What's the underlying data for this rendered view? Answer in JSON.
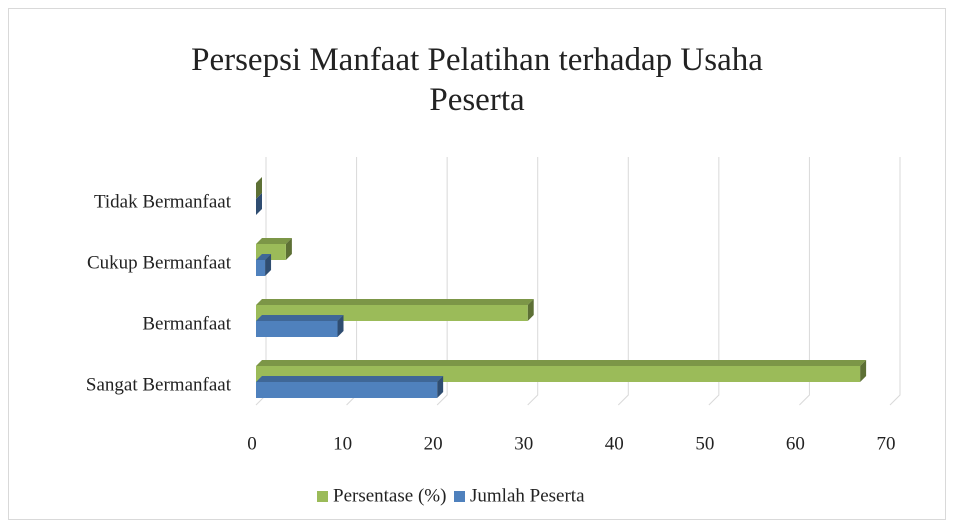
{
  "chart_data": {
    "type": "bar3d_horizontal",
    "title": "Persepsi Manfaat Pelatihan terhadap Usaha Peserta",
    "categories": [
      "Sangat Bermanfaat",
      "Bermanfaat",
      "Cukup Bermanfaat",
      "Tidak Bermanfaat"
    ],
    "series": [
      {
        "name": "Persentase (%)",
        "color": "#9bbb59",
        "values": [
          66.7,
          30,
          3.3,
          0
        ]
      },
      {
        "name": "Jumlah Peserta",
        "color": "#4f81bd",
        "values": [
          20,
          9,
          1,
          0
        ]
      }
    ],
    "xlim": [
      0,
      70
    ],
    "xticks": [
      0,
      10,
      20,
      30,
      40,
      50,
      60,
      70
    ],
    "grid": true,
    "legend": "bottom"
  }
}
